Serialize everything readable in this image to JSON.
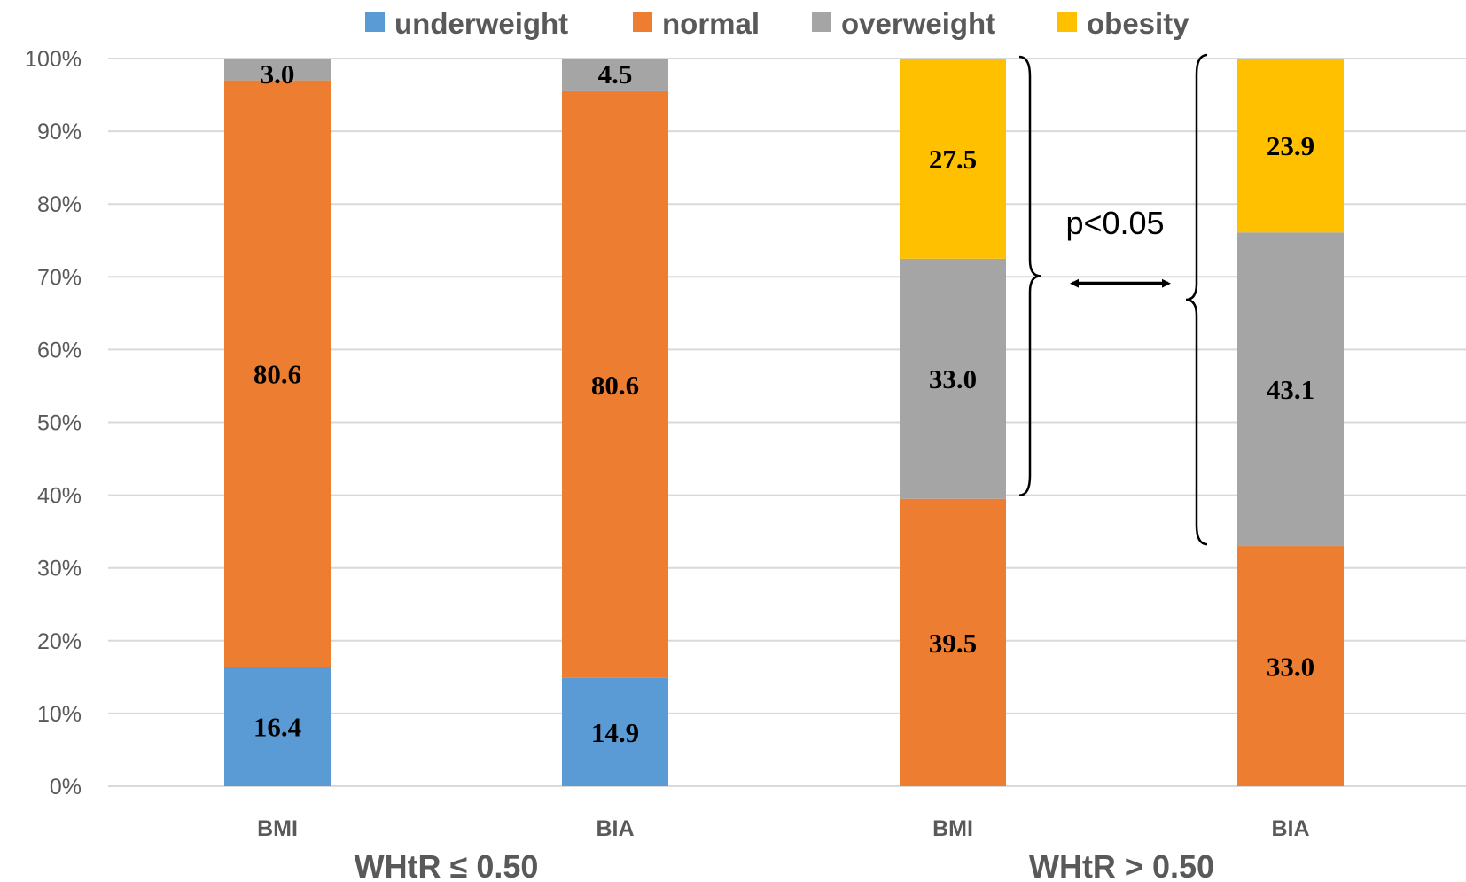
{
  "chart_data": {
    "type": "bar",
    "stacked": true,
    "title": "",
    "xlabel": "",
    "ylabel": "",
    "ylim": [
      0,
      100
    ],
    "y_ticks": [
      "0%",
      "10%",
      "20%",
      "30%",
      "40%",
      "50%",
      "60%",
      "70%",
      "80%",
      "90%",
      "100%"
    ],
    "grid": true,
    "legend_position": "top",
    "categories": [
      "BMI",
      "BIA",
      "BMI",
      "BIA"
    ],
    "groups": [
      {
        "label": "WHtR ≤ 0.50",
        "categories": [
          0,
          1
        ]
      },
      {
        "label": "WHtR > 0.50",
        "categories": [
          2,
          3
        ]
      }
    ],
    "series": [
      {
        "name": "underweight",
        "color": "#5B9BD5",
        "values": [
          16.4,
          14.9,
          0,
          0
        ],
        "labels": [
          "16.4",
          "14.9",
          "",
          ""
        ]
      },
      {
        "name": "normal",
        "color": "#ED7D31",
        "values": [
          80.6,
          80.6,
          39.5,
          33.0
        ],
        "labels": [
          "80.6",
          "80.6",
          "39.5",
          "33.0"
        ]
      },
      {
        "name": "overweight",
        "color": "#A5A5A5",
        "values": [
          3.0,
          4.5,
          33.0,
          43.1
        ],
        "labels": [
          "3.0",
          "4.5",
          "33.0",
          "43.1"
        ]
      },
      {
        "name": "obesity",
        "color": "#FFC000",
        "values": [
          0,
          0,
          27.5,
          23.9
        ],
        "labels": [
          "",
          "",
          "27.5",
          "23.9"
        ]
      }
    ],
    "annotations": [
      {
        "text": "p<0.05",
        "type": "double-arrow-between-braces",
        "left_range": [
          39.5,
          100
        ],
        "right_range": [
          33.0,
          100
        ]
      }
    ]
  }
}
